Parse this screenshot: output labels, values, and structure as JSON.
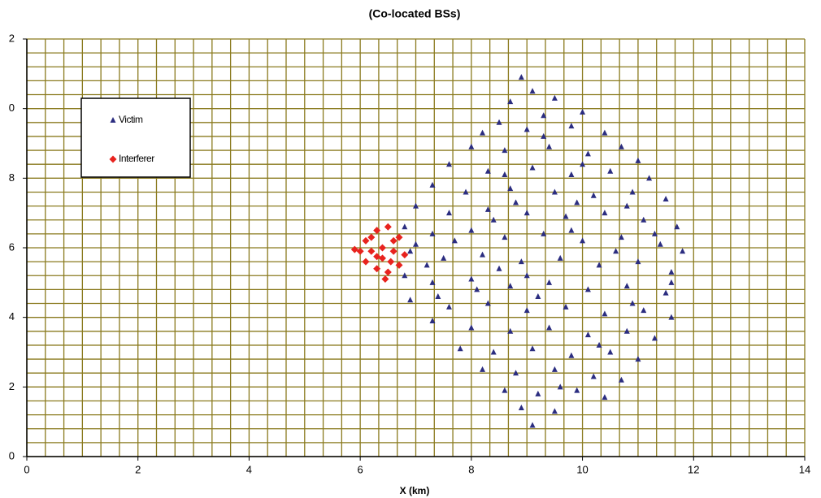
{
  "chart_data": {
    "type": "scatter",
    "title": "(Co-located BSs)",
    "xlabel": "X (km)",
    "xlim": [
      0,
      14
    ],
    "ylim": [
      0,
      12
    ],
    "xticks": [
      0,
      2,
      4,
      6,
      8,
      10,
      12,
      14
    ],
    "yticks": [
      0,
      2,
      4,
      6,
      8,
      {
        "value": 10,
        "label": "0"
      },
      {
        "value": 12,
        "label": "2"
      }
    ],
    "grid": true,
    "grid_color": "#8a7a1e",
    "minor_grid_divisions": {
      "x": 6,
      "y": 5
    },
    "legend": "upper left",
    "series": [
      {
        "name": "Victim",
        "color": "#2b2d80",
        "marker": "triangle",
        "x": [
          8.9,
          9.1,
          9.5,
          8.7,
          10.0,
          9.3,
          8.5,
          8.2,
          9.0,
          9.8,
          10.4,
          10.7,
          8.0,
          8.6,
          9.4,
          10.1,
          11.0,
          7.6,
          8.3,
          9.1,
          9.8,
          10.5,
          11.2,
          7.3,
          7.9,
          8.7,
          9.5,
          10.2,
          10.9,
          11.5,
          7.0,
          7.6,
          8.3,
          9.0,
          9.7,
          10.4,
          11.1,
          11.7,
          6.8,
          7.3,
          8.0,
          8.6,
          9.3,
          10.0,
          10.7,
          11.4,
          11.8,
          6.9,
          7.5,
          8.2,
          8.9,
          9.6,
          10.3,
          11.0,
          11.6,
          6.8,
          7.3,
          8.0,
          8.7,
          9.4,
          10.1,
          10.8,
          11.5,
          6.9,
          7.6,
          8.3,
          9.0,
          9.7,
          10.4,
          11.1,
          11.6,
          7.3,
          8.0,
          8.7,
          9.4,
          10.1,
          10.8,
          11.3,
          7.8,
          8.4,
          9.1,
          9.8,
          10.5,
          11.0,
          8.2,
          8.8,
          9.5,
          10.2,
          10.7,
          8.6,
          9.2,
          9.9,
          10.4,
          8.9,
          9.5,
          9.1,
          7.7,
          8.8,
          9.9,
          10.6,
          9.2,
          8.5,
          7.2,
          10.9,
          9.6,
          8.1,
          10.0,
          9.3,
          11.3,
          7.4,
          8.4,
          10.3,
          9.0,
          9.8,
          8.6,
          10.8,
          11.6,
          7.0
        ],
        "y": [
          10.9,
          10.5,
          10.3,
          10.2,
          9.9,
          9.8,
          9.6,
          9.3,
          9.4,
          9.5,
          9.3,
          8.9,
          8.9,
          8.8,
          8.9,
          8.7,
          8.5,
          8.4,
          8.2,
          8.3,
          8.1,
          8.2,
          8.0,
          7.8,
          7.6,
          7.7,
          7.6,
          7.5,
          7.6,
          7.4,
          7.2,
          7.0,
          7.1,
          7.0,
          6.9,
          7.0,
          6.8,
          6.6,
          6.6,
          6.4,
          6.5,
          6.3,
          6.4,
          6.2,
          6.3,
          6.1,
          5.9,
          5.9,
          5.7,
          5.8,
          5.6,
          5.7,
          5.5,
          5.6,
          5.3,
          5.2,
          5.0,
          5.1,
          4.9,
          5.0,
          4.8,
          4.9,
          4.7,
          4.5,
          4.3,
          4.4,
          4.2,
          4.3,
          4.1,
          4.2,
          4.0,
          3.9,
          3.7,
          3.6,
          3.7,
          3.5,
          3.6,
          3.4,
          3.1,
          3.0,
          3.1,
          2.9,
          3.0,
          2.8,
          2.5,
          2.4,
          2.5,
          2.3,
          2.2,
          1.9,
          1.8,
          1.9,
          1.7,
          1.4,
          1.3,
          0.9,
          6.2,
          7.3,
          7.3,
          5.9,
          4.6,
          5.4,
          5.5,
          4.4,
          2.0,
          4.8,
          8.4,
          9.2,
          6.4,
          4.6,
          6.8,
          3.2,
          5.2,
          6.5,
          8.1,
          7.2,
          5.0,
          6.1
        ]
      },
      {
        "name": "Interferer",
        "color": "#e8231e",
        "marker": "diamond",
        "x": [
          5.9,
          6.1,
          6.3,
          6.5,
          6.7,
          6.2,
          6.4,
          6.6,
          6.8,
          6.1,
          6.3,
          6.5,
          6.7,
          6.4,
          6.2,
          6.6,
          6.45,
          6.0,
          6.3,
          6.55
        ],
        "y": [
          5.95,
          6.2,
          6.5,
          6.6,
          6.3,
          5.9,
          6.0,
          5.9,
          5.8,
          5.6,
          5.4,
          5.3,
          5.5,
          5.7,
          6.3,
          6.2,
          5.1,
          5.9,
          5.75,
          5.6
        ]
      }
    ]
  }
}
